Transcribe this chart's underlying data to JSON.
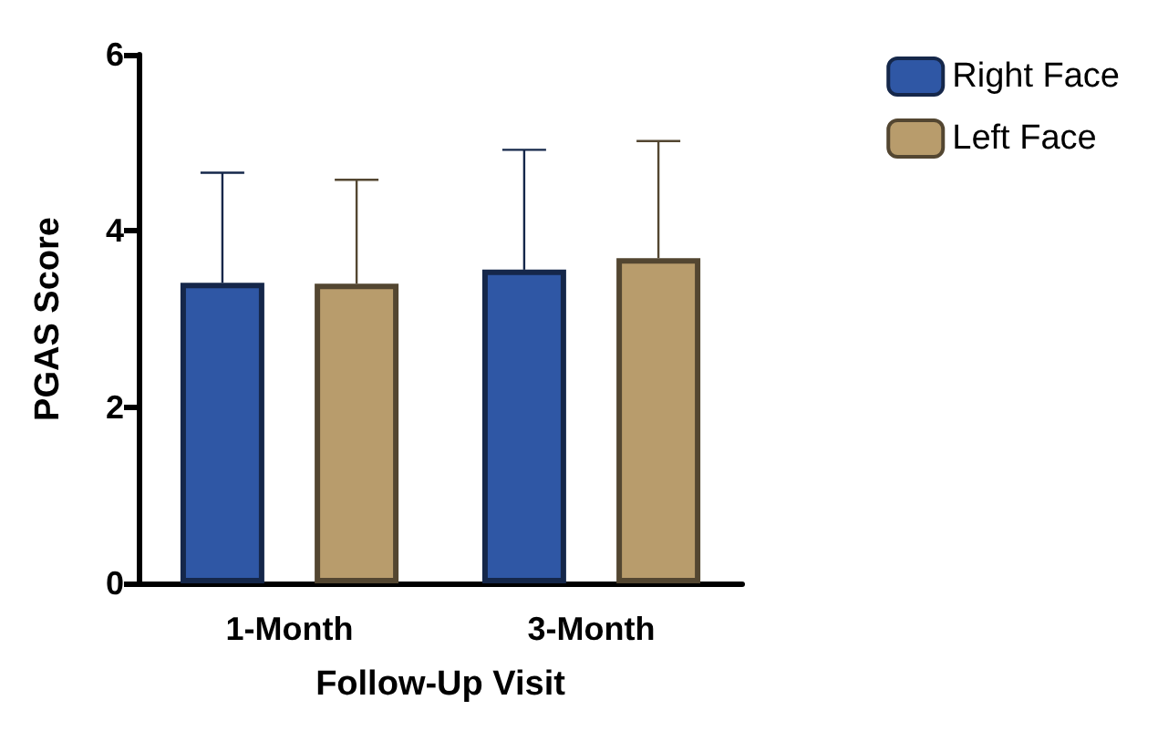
{
  "chart_data": {
    "type": "bar",
    "xlabel": "Follow-Up Visit",
    "ylabel": "PGAS Score",
    "categories": [
      "1-Month",
      "3-Month"
    ],
    "series": [
      {
        "name": "Right Face",
        "color": "#2f57a5",
        "values": [
          3.41,
          3.56
        ],
        "errors": [
          [
            3.41,
            4.66
          ],
          [
            3.56,
            4.92
          ]
        ]
      },
      {
        "name": "Left Face",
        "color": "#b89c6c",
        "values": [
          3.4,
          3.69
        ],
        "errors": [
          [
            3.4,
            4.58
          ],
          [
            3.69,
            5.02
          ]
        ]
      }
    ],
    "ylim": [
      0,
      6
    ],
    "yticks": [
      0,
      2,
      4,
      6
    ],
    "grid": false,
    "legend": "top right"
  }
}
